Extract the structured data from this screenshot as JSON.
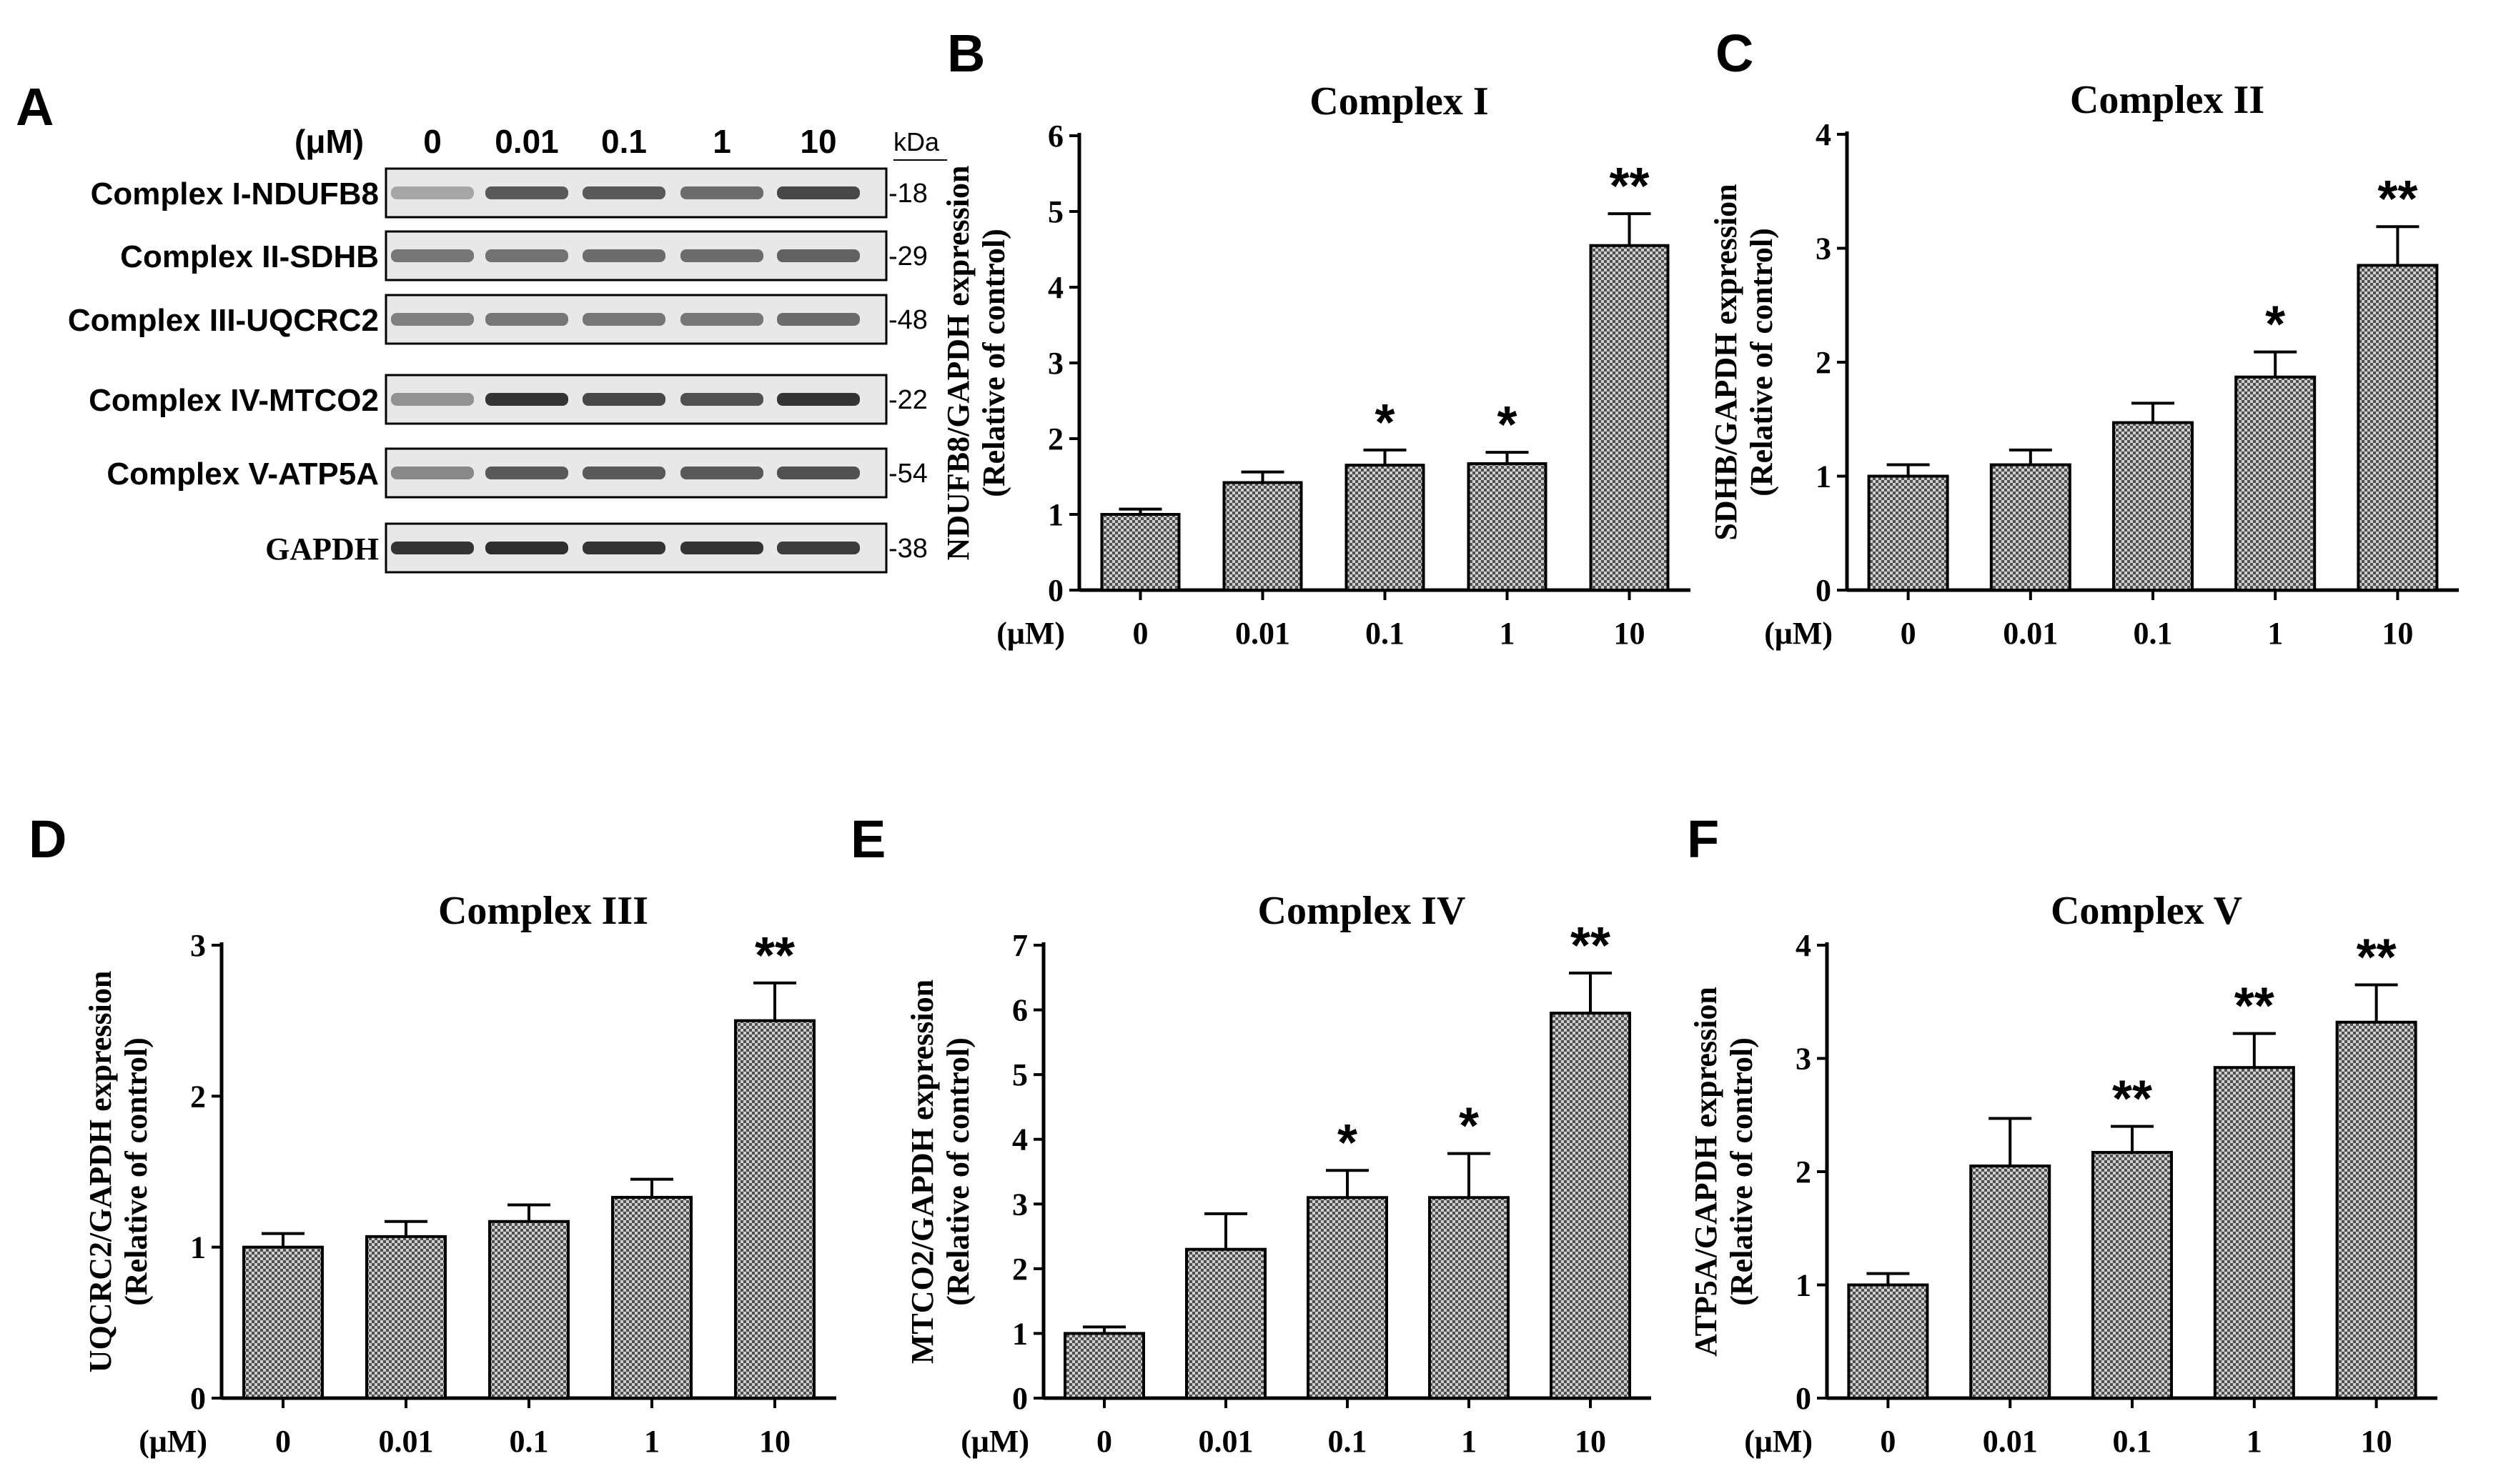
{
  "colors": {
    "ink": "#000000",
    "bar_fill": "#9a9a9a",
    "blot_bg": "#e8e8e8",
    "band": "#2a2a2a"
  },
  "blot": {
    "panel_letter": "A",
    "unit_label": "(μM)",
    "doses": [
      "0",
      "0.01",
      "0.1",
      "1",
      "10"
    ],
    "kda_label": "kDa",
    "rows": [
      {
        "label": "Complex I-NDUFB8",
        "kda": "-18",
        "intensity": [
          0.35,
          0.75,
          0.75,
          0.65,
          0.85
        ]
      },
      {
        "label": "Complex II-SDHB",
        "kda": "-29",
        "intensity": [
          0.6,
          0.62,
          0.65,
          0.65,
          0.7
        ]
      },
      {
        "label": "Complex III-UQCRC2",
        "kda": "-48",
        "intensity": [
          0.55,
          0.6,
          0.6,
          0.6,
          0.65
        ]
      },
      {
        "label": "Complex IV-MTCO2",
        "kda": "-22",
        "intensity": [
          0.45,
          0.95,
          0.85,
          0.8,
          0.95
        ]
      },
      {
        "label": "Complex V-ATP5A",
        "kda": "-54",
        "intensity": [
          0.5,
          0.75,
          0.75,
          0.75,
          0.8
        ]
      },
      {
        "label": "GAPDH",
        "kda": "-38",
        "intensity": [
          0.95,
          0.98,
          0.95,
          0.95,
          0.9
        ]
      }
    ]
  },
  "chart_data": [
    {
      "type": "bar",
      "panel": "B",
      "title": "Complex I",
      "ylabel_line1": "NDUFB8/GAPDH expression",
      "ylabel_line2": "(Relative of control)",
      "x_unit": "(μM)",
      "categories": [
        "0",
        "0.01",
        "0.1",
        "1",
        "10"
      ],
      "values": [
        1.0,
        1.42,
        1.65,
        1.67,
        4.55
      ],
      "errors": [
        0.07,
        0.14,
        0.2,
        0.15,
        0.42
      ],
      "significance": [
        "",
        "",
        "*",
        "*",
        "**"
      ],
      "ylim": [
        0,
        6
      ],
      "yticks": [
        "0",
        "1",
        "2",
        "3",
        "4",
        "5",
        "6"
      ]
    },
    {
      "type": "bar",
      "panel": "C",
      "title": "Complex II",
      "ylabel_line1": "SDHB/GAPDH expression",
      "ylabel_line2": "(Relative of control)",
      "x_unit": "(μM)",
      "categories": [
        "0",
        "0.01",
        "0.1",
        "1",
        "10"
      ],
      "values": [
        1.0,
        1.1,
        1.47,
        1.87,
        2.85
      ],
      "errors": [
        0.1,
        0.13,
        0.17,
        0.22,
        0.34
      ],
      "significance": [
        "",
        "",
        "",
        "*",
        "**"
      ],
      "ylim": [
        0,
        4
      ],
      "yticks": [
        "0",
        "1",
        "2",
        "3",
        "4"
      ]
    },
    {
      "type": "bar",
      "panel": "D",
      "title": "Complex III",
      "ylabel_line1": "UQCRC2/GAPDH expression",
      "ylabel_line2": "(Relative of control)",
      "x_unit": "(μM)",
      "categories": [
        "0",
        "0.01",
        "0.1",
        "1",
        "10"
      ],
      "values": [
        1.0,
        1.07,
        1.17,
        1.33,
        2.5
      ],
      "errors": [
        0.09,
        0.1,
        0.11,
        0.12,
        0.25
      ],
      "significance": [
        "",
        "",
        "",
        "",
        "**"
      ],
      "ylim": [
        0,
        3
      ],
      "yticks": [
        "0",
        "1",
        "2",
        "3"
      ]
    },
    {
      "type": "bar",
      "panel": "E",
      "title": "Complex IV",
      "ylabel_line1": "MTCO2/GAPDH expression",
      "ylabel_line2": "(Relative of control)",
      "x_unit": "(μM)",
      "categories": [
        "0",
        "0.01",
        "0.1",
        "1",
        "10"
      ],
      "values": [
        1.0,
        2.3,
        3.1,
        3.1,
        5.95
      ],
      "errors": [
        0.1,
        0.55,
        0.42,
        0.68,
        0.62
      ],
      "significance": [
        "",
        "",
        "*",
        "*",
        "**"
      ],
      "ylim": [
        0,
        7
      ],
      "yticks": [
        "0",
        "1",
        "2",
        "3",
        "4",
        "5",
        "6",
        "7"
      ]
    },
    {
      "type": "bar",
      "panel": "F",
      "title": "Complex V",
      "ylabel_line1": "ATP5A/GAPDH expression",
      "ylabel_line2": "(Relative of control)",
      "x_unit": "(μM)",
      "categories": [
        "0",
        "0.01",
        "0.1",
        "1",
        "10"
      ],
      "values": [
        1.0,
        2.05,
        2.17,
        2.92,
        3.32
      ],
      "errors": [
        0.1,
        0.42,
        0.23,
        0.3,
        0.33
      ],
      "significance": [
        "",
        "",
        "**",
        "**",
        "**"
      ],
      "ylim": [
        0,
        4
      ],
      "yticks": [
        "0",
        "1",
        "2",
        "3",
        "4"
      ]
    }
  ]
}
